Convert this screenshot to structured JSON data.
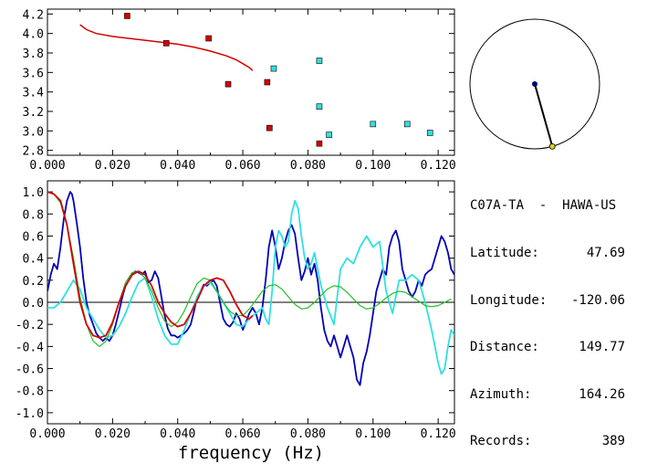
{
  "colors": {
    "red": "#d40000",
    "blue": "#0000b8",
    "cyan": "#30e0e0",
    "green": "#22c022",
    "axis": "#000000",
    "station_dot": "#e0d020",
    "source_dot": "#00006e"
  },
  "station": {
    "name": "C07A-TA  -  HAWA-US",
    "lat_label": "Latitude:",
    "lat": "47.69",
    "lon_label": "Longitude:",
    "lon": "-120.06",
    "dist_label": "Distance:",
    "dist": "149.77",
    "az_label": "Azimuth:",
    "az": "164.26",
    "rec_label": "Records:",
    "rec": "389"
  },
  "chart_data": [
    {
      "type": "scatter",
      "xlim": [
        0,
        0.125
      ],
      "ylim": [
        2.75,
        4.25
      ],
      "x_ticks": [
        "0.000",
        "0.020",
        "0.040",
        "0.060",
        "0.080",
        "0.100",
        "0.120"
      ],
      "y_ticks": [
        "2.8",
        "3.0",
        "3.2",
        "3.4",
        "3.6",
        "3.8",
        "4.0",
        "4.2"
      ],
      "grid": false,
      "red_points": [
        {
          "x": 0.0245,
          "y": 4.18
        },
        {
          "x": 0.0365,
          "y": 3.9
        },
        {
          "x": 0.0495,
          "y": 3.95
        },
        {
          "x": 0.0555,
          "y": 3.48
        },
        {
          "x": 0.0675,
          "y": 3.5
        },
        {
          "x": 0.0682,
          "y": 3.03
        },
        {
          "x": 0.0835,
          "y": 2.87
        }
      ],
      "cyan_points": [
        {
          "x": 0.0695,
          "y": 3.64
        },
        {
          "x": 0.0835,
          "y": 3.72
        },
        {
          "x": 0.0835,
          "y": 3.25
        },
        {
          "x": 0.0865,
          "y": 2.96
        },
        {
          "x": 0.1,
          "y": 3.07
        },
        {
          "x": 0.1105,
          "y": 3.07
        },
        {
          "x": 0.1175,
          "y": 2.98
        }
      ],
      "red_curve": [
        [
          0.01,
          4.09
        ],
        [
          0.012,
          4.04
        ],
        [
          0.015,
          4.0
        ],
        [
          0.02,
          3.97
        ],
        [
          0.025,
          3.95
        ],
        [
          0.03,
          3.93
        ],
        [
          0.035,
          3.91
        ],
        [
          0.04,
          3.89
        ],
        [
          0.045,
          3.86
        ],
        [
          0.05,
          3.82
        ],
        [
          0.055,
          3.77
        ],
        [
          0.058,
          3.73
        ],
        [
          0.06,
          3.69
        ],
        [
          0.062,
          3.65
        ],
        [
          0.063,
          3.62
        ]
      ]
    },
    {
      "type": "line",
      "xlabel": "frequency (Hz)",
      "xlim": [
        0,
        0.125
      ],
      "ylim": [
        -1.1,
        1.1
      ],
      "x_ticks": [
        "0.000",
        "0.020",
        "0.040",
        "0.060",
        "0.080",
        "0.100",
        "0.120"
      ],
      "y_ticks": [
        "-1.0",
        "-0.8",
        "-0.6",
        "-0.4",
        "-0.2",
        "0.0",
        "0.2",
        "0.4",
        "0.6",
        "0.8",
        "1.0"
      ],
      "zero_line": true,
      "series": [
        {
          "color": "blue",
          "x": [
            0.0,
            0.001,
            0.002,
            0.003,
            0.004,
            0.005,
            0.006,
            0.007,
            0.0075,
            0.008,
            0.009,
            0.01,
            0.011,
            0.012,
            0.013,
            0.014,
            0.015,
            0.016,
            0.017,
            0.018,
            0.019,
            0.02,
            0.021,
            0.022,
            0.023,
            0.024,
            0.025,
            0.026,
            0.027,
            0.028,
            0.029,
            0.03,
            0.031,
            0.032,
            0.033,
            0.034,
            0.035,
            0.036,
            0.037,
            0.038,
            0.039,
            0.04,
            0.041,
            0.042,
            0.043,
            0.044,
            0.045,
            0.046,
            0.047,
            0.048,
            0.049,
            0.05,
            0.051,
            0.052,
            0.053,
            0.054,
            0.055,
            0.056,
            0.057,
            0.058,
            0.059,
            0.06,
            0.061,
            0.062,
            0.063,
            0.064,
            0.065,
            0.066,
            0.067,
            0.068,
            0.069,
            0.07,
            0.071,
            0.072,
            0.073,
            0.074,
            0.075,
            0.076,
            0.077,
            0.078,
            0.079,
            0.08,
            0.081,
            0.082,
            0.083,
            0.084,
            0.085,
            0.086,
            0.087,
            0.088,
            0.089,
            0.09,
            0.091,
            0.092,
            0.093,
            0.094,
            0.095,
            0.096,
            0.097,
            0.098,
            0.099,
            0.1,
            0.101,
            0.102,
            0.103,
            0.104,
            0.105,
            0.106,
            0.107,
            0.108,
            0.109,
            0.11,
            0.111,
            0.112,
            0.113,
            0.114,
            0.115,
            0.116,
            0.117,
            0.118,
            0.119,
            0.12,
            0.121,
            0.122,
            0.123,
            0.124,
            0.125
          ],
          "y": [
            0.1,
            0.25,
            0.35,
            0.3,
            0.5,
            0.75,
            0.92,
            1.0,
            0.98,
            0.92,
            0.72,
            0.5,
            0.22,
            0.0,
            -0.12,
            -0.2,
            -0.28,
            -0.32,
            -0.35,
            -0.32,
            -0.35,
            -0.3,
            -0.2,
            -0.08,
            0.05,
            0.15,
            0.2,
            0.25,
            0.28,
            0.27,
            0.25,
            0.28,
            0.18,
            0.2,
            0.28,
            0.22,
            0.05,
            -0.12,
            -0.24,
            -0.3,
            -0.3,
            -0.32,
            -0.3,
            -0.28,
            -0.25,
            -0.2,
            -0.08,
            0.05,
            0.1,
            0.16,
            0.15,
            0.18,
            0.2,
            0.15,
            0.0,
            -0.15,
            -0.2,
            -0.22,
            -0.18,
            -0.1,
            -0.15,
            -0.25,
            -0.18,
            -0.1,
            -0.05,
            -0.1,
            -0.2,
            -0.05,
            0.2,
            0.5,
            0.65,
            0.5,
            0.3,
            0.4,
            0.55,
            0.65,
            0.7,
            0.62,
            0.4,
            0.2,
            0.28,
            0.4,
            0.25,
            0.35,
            0.2,
            -0.05,
            -0.25,
            -0.35,
            -0.4,
            -0.3,
            -0.4,
            -0.5,
            -0.4,
            -0.3,
            -0.4,
            -0.5,
            -0.7,
            -0.75,
            -0.55,
            -0.45,
            -0.3,
            -0.1,
            0.1,
            0.2,
            0.3,
            0.25,
            0.5,
            0.6,
            0.65,
            0.55,
            0.3,
            0.2,
            0.1,
            0.05,
            0.1,
            0.2,
            0.15,
            0.25,
            0.28,
            0.3,
            0.4,
            0.5,
            0.6,
            0.55,
            0.45,
            0.3,
            0.25
          ]
        },
        {
          "color": "cyan",
          "x": [
            0.0,
            0.002,
            0.004,
            0.006,
            0.008,
            0.01,
            0.012,
            0.014,
            0.016,
            0.018,
            0.02,
            0.022,
            0.024,
            0.026,
            0.028,
            0.03,
            0.032,
            0.034,
            0.036,
            0.038,
            0.04,
            0.042,
            0.044,
            0.046,
            0.048,
            0.05,
            0.052,
            0.054,
            0.056,
            0.058,
            0.06,
            0.062,
            0.064,
            0.066,
            0.067,
            0.068,
            0.069,
            0.07,
            0.071,
            0.072,
            0.073,
            0.074,
            0.075,
            0.076,
            0.077,
            0.078,
            0.079,
            0.08,
            0.081,
            0.082,
            0.083,
            0.084,
            0.085,
            0.086,
            0.088,
            0.09,
            0.092,
            0.094,
            0.096,
            0.098,
            0.1,
            0.102,
            0.104,
            0.106,
            0.108,
            0.11,
            0.112,
            0.114,
            0.116,
            0.118,
            0.119,
            0.12,
            0.121,
            0.122,
            0.123,
            0.124,
            0.125
          ],
          "y": [
            -0.05,
            -0.05,
            0.0,
            0.1,
            0.2,
            0.12,
            -0.05,
            -0.15,
            -0.25,
            -0.32,
            -0.3,
            -0.22,
            -0.1,
            0.05,
            0.18,
            0.22,
            0.05,
            -0.15,
            -0.3,
            -0.38,
            -0.38,
            -0.25,
            -0.1,
            0.05,
            0.15,
            0.18,
            0.1,
            0.0,
            -0.1,
            -0.2,
            -0.22,
            -0.15,
            -0.1,
            -0.05,
            -0.15,
            -0.2,
            0.1,
            0.5,
            0.65,
            0.6,
            0.5,
            0.55,
            0.8,
            0.92,
            0.85,
            0.6,
            0.4,
            0.3,
            0.35,
            0.45,
            0.3,
            0.15,
            0.05,
            -0.05,
            -0.2,
            0.3,
            0.4,
            0.35,
            0.5,
            0.6,
            0.5,
            0.55,
            0.1,
            -0.1,
            0.2,
            0.2,
            0.25,
            0.2,
            0.0,
            -0.25,
            -0.4,
            -0.55,
            -0.65,
            -0.6,
            -0.4,
            -0.25,
            -0.3
          ]
        },
        {
          "color": "green",
          "x": [
            0.0,
            0.002,
            0.004,
            0.006,
            0.008,
            0.01,
            0.012,
            0.014,
            0.016,
            0.018,
            0.02,
            0.022,
            0.024,
            0.026,
            0.028,
            0.03,
            0.032,
            0.034,
            0.036,
            0.038,
            0.04,
            0.042,
            0.044,
            0.046,
            0.048,
            0.05,
            0.052,
            0.054,
            0.056,
            0.058,
            0.06,
            0.062,
            0.064,
            0.066,
            0.068,
            0.07,
            0.072,
            0.074,
            0.076,
            0.078,
            0.08,
            0.082,
            0.084,
            0.086,
            0.088,
            0.09,
            0.092,
            0.094,
            0.096,
            0.098,
            0.1,
            0.102,
            0.104,
            0.106,
            0.108,
            0.11,
            0.112,
            0.114,
            0.116,
            0.118,
            0.12,
            0.122,
            0.124
          ],
          "y": [
            1.0,
            0.98,
            0.9,
            0.7,
            0.4,
            0.05,
            -0.2,
            -0.35,
            -0.4,
            -0.35,
            -0.2,
            0.0,
            0.18,
            0.27,
            0.28,
            0.22,
            0.1,
            -0.05,
            -0.17,
            -0.22,
            -0.18,
            -0.08,
            0.05,
            0.17,
            0.22,
            0.2,
            0.1,
            0.0,
            -0.08,
            -0.12,
            -0.12,
            -0.06,
            0.02,
            0.1,
            0.15,
            0.16,
            0.12,
            0.05,
            -0.02,
            -0.06,
            -0.05,
            0.0,
            0.06,
            0.12,
            0.15,
            0.14,
            0.09,
            0.03,
            -0.03,
            -0.06,
            -0.05,
            -0.01,
            0.04,
            0.08,
            0.1,
            0.09,
            0.05,
            0.01,
            -0.03,
            -0.04,
            -0.03,
            0.0,
            0.03
          ]
        },
        {
          "color": "red",
          "x": [
            0.0,
            0.002,
            0.004,
            0.006,
            0.008,
            0.01,
            0.012,
            0.014,
            0.016,
            0.018,
            0.02,
            0.022,
            0.024,
            0.026,
            0.028,
            0.03,
            0.032,
            0.034,
            0.036,
            0.038,
            0.04,
            0.042,
            0.044,
            0.046,
            0.048,
            0.05,
            0.052,
            0.054,
            0.056,
            0.058,
            0.06,
            0.062,
            0.063
          ],
          "y": [
            1.0,
            0.98,
            0.92,
            0.7,
            0.35,
            0.0,
            -0.2,
            -0.3,
            -0.32,
            -0.3,
            -0.18,
            0.0,
            0.15,
            0.25,
            0.28,
            0.25,
            0.15,
            0.0,
            -0.1,
            -0.18,
            -0.22,
            -0.2,
            -0.1,
            0.02,
            0.15,
            0.2,
            0.22,
            0.2,
            0.1,
            -0.02,
            -0.12,
            -0.15,
            -0.12
          ]
        }
      ]
    }
  ],
  "globe": {
    "source_azimuth_deg": 164.26,
    "station_fraction": 1.0
  }
}
